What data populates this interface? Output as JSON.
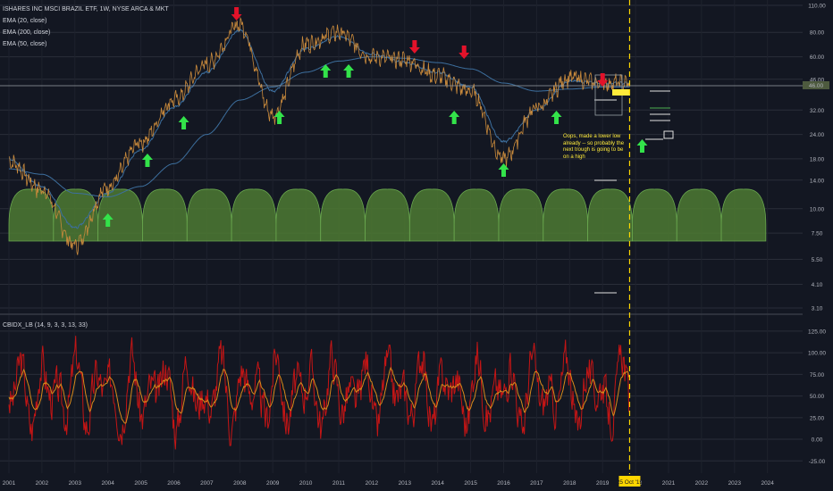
{
  "header": {
    "symbol": "ISHARES INC MSCI BRAZIL ETF, 1W, NYSE ARCA & MKT",
    "ema20": "EMA (20, close)",
    "ema200": "EMA (200, close)",
    "ema50": "EMA (50, close)"
  },
  "indicator_label": "CBIDX_LB (14, 9, 3, 3, 13, 33)",
  "annotation": "Oops, made a lower low already -- so probably the next trough is going to be on a high",
  "price_badge": "46.00",
  "date_badge": "25 Oct '19",
  "colors": {
    "background": "#131722",
    "price": "#c98a3c",
    "ema": "#3d6f9e",
    "cycle_fill": "#4d7a32",
    "up_arrow": "#33e34a",
    "down_arrow": "#e3122a",
    "oscillator": "#c41515",
    "signal": "#d88a1a",
    "marker_line": "#ffd600",
    "annotation": "#ffeb3b"
  },
  "chart_data": [
    {
      "type": "line",
      "title": "ISHARES INC MSCI BRAZIL ETF, 1W, NYSE ARCA & MKT",
      "scale": "log",
      "x": [
        "2001",
        "2002",
        "2003",
        "2004",
        "2005",
        "2006",
        "2007",
        "2008",
        "2009",
        "2010",
        "2011",
        "2012",
        "2013",
        "2014",
        "2015",
        "2016",
        "2017",
        "2018",
        "2019"
      ],
      "series": [
        {
          "name": "ISHARES INC MSCI BRAZIL ETF",
          "values": [
            17.5,
            12.5,
            6.5,
            13.0,
            22.0,
            36.0,
            55.0,
            88.0,
            30.0,
            70.0,
            80.0,
            60.0,
            58.0,
            48.0,
            40.0,
            18.0,
            33.0,
            47.0,
            44.0
          ]
        },
        {
          "name": "EMA (20, close)",
          "values": [
            18.0,
            13.0,
            8.0,
            12.0,
            20.0,
            33.0,
            50.0,
            82.0,
            40.0,
            66.0,
            76.0,
            62.0,
            56.0,
            50.0,
            42.0,
            22.0,
            32.0,
            45.0,
            44.0
          ]
        },
        {
          "name": "EMA (200, close)",
          "values": [
            16.0,
            15.0,
            12.0,
            11.5,
            13.0,
            17.0,
            24.0,
            36.0,
            42.0,
            50.0,
            57.0,
            60.0,
            59.0,
            56.0,
            52.0,
            44.0,
            40.0,
            41.0,
            42.0
          ]
        }
      ],
      "y_ticks": [
        "110.00",
        "80.00",
        "60.00",
        "46.00",
        "32.00",
        "24.00",
        "18.00",
        "14.00",
        "10.00",
        "7.50",
        "5.50",
        "4.10",
        "3.10"
      ],
      "x_ticks": [
        "2001",
        "2002",
        "2003",
        "2004",
        "2005",
        "2006",
        "2007",
        "2008",
        "2009",
        "2010",
        "2011",
        "2012",
        "2013",
        "2014",
        "2015",
        "2016",
        "2017",
        "2018",
        "2019",
        "2020",
        "2021",
        "2022",
        "2023",
        "2024"
      ],
      "up_arrows": [
        2004.0,
        2005.2,
        2006.3,
        2009.2,
        2010.6,
        2011.3,
        2014.5,
        2016.0,
        2017.6
      ],
      "down_arrows": [
        2007.9,
        2013.3,
        2014.8,
        2019.0
      ],
      "projected_up_arrow": 2020.2,
      "cycle_troughs": [
        2001.0,
        2002.35,
        2003.7,
        2005.05,
        2006.4,
        2007.75,
        2009.1,
        2010.45,
        2011.8,
        2013.15,
        2014.5,
        2015.85,
        2017.2,
        2018.55,
        2019.9,
        2021.25,
        2022.6,
        2023.95
      ],
      "marker_date": 2019.82
    },
    {
      "type": "line",
      "title": "CBIDX_LB (14, 9, 3, 3, 13, 33)",
      "y_ticks": [
        "125.00",
        "100.00",
        "75.00",
        "50.00",
        "25.00",
        "0.00",
        "-25.00"
      ],
      "ylim": [
        -35,
        130
      ]
    }
  ]
}
